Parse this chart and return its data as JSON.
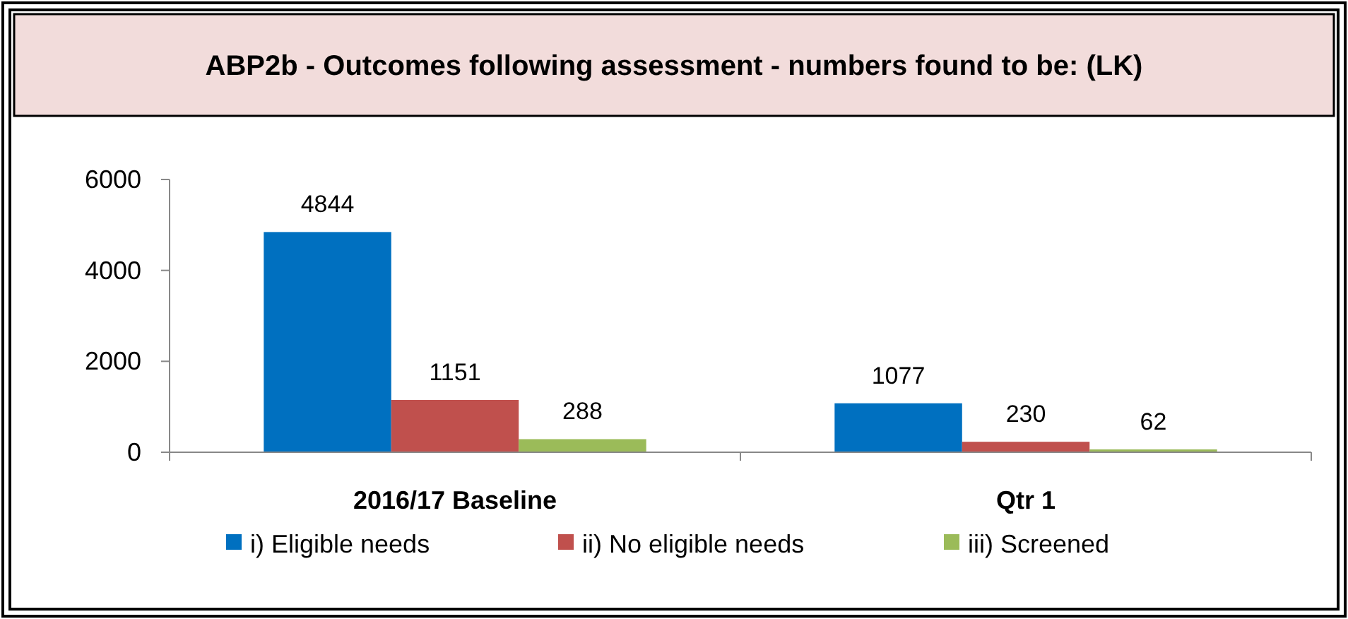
{
  "chart_data": {
    "type": "bar",
    "title": "ABP2b - Outcomes following assessment - numbers found to be: (LK)",
    "categories": [
      "2016/17 Baseline",
      "Qtr 1"
    ],
    "series": [
      {
        "name": "i) Eligible needs",
        "color": "#0070c0",
        "values": [
          4844,
          1077
        ]
      },
      {
        "name": "ii) No eligible needs",
        "color": "#c0504d",
        "values": [
          1151,
          230
        ]
      },
      {
        "name": "iii) Screened",
        "color": "#9bbb59",
        "values": [
          288,
          62
        ]
      }
    ],
    "ylim": [
      0,
      6000
    ],
    "yticks": [
      0,
      2000,
      4000,
      6000
    ],
    "data_labels": true,
    "grid": false,
    "legend": "bottom"
  }
}
